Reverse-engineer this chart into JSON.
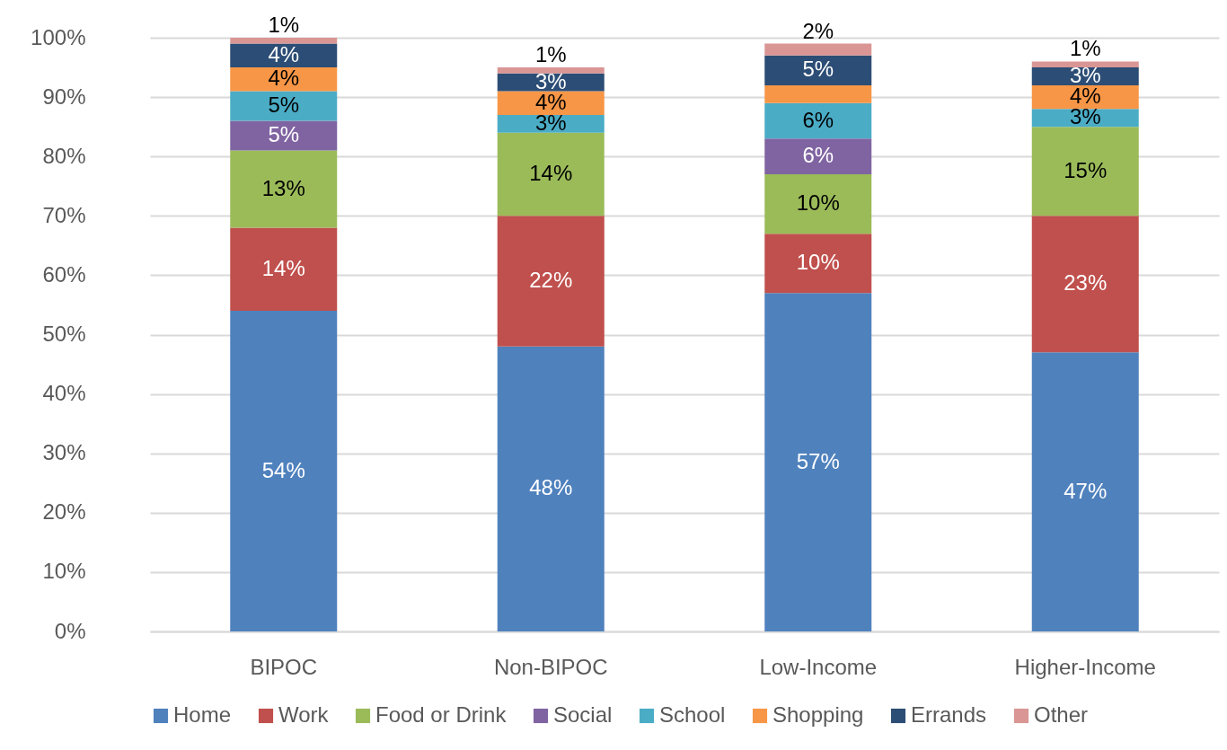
{
  "chart_data": {
    "type": "bar",
    "stacked": true,
    "categories": [
      "BIPOC",
      "Non-BIPOC",
      "Low-Income",
      "Higher-Income"
    ],
    "series": [
      {
        "name": "Home",
        "color": "#4f81bd",
        "values": [
          54,
          48,
          57,
          47
        ],
        "value_labels": [
          "54%",
          "48%",
          "57%",
          "47%"
        ]
      },
      {
        "name": "Work",
        "color": "#c0504d",
        "values": [
          14,
          22,
          10,
          23
        ],
        "value_labels": [
          "14%",
          "22%",
          "10%",
          "23%"
        ]
      },
      {
        "name": "Food or Drink",
        "color": "#9bbb59",
        "values": [
          13,
          14,
          10,
          15
        ],
        "value_labels": [
          "13%",
          "14%",
          "10%",
          "15%"
        ]
      },
      {
        "name": "Social",
        "color": "#8064a2",
        "values": [
          5,
          null,
          6,
          null
        ],
        "value_labels": [
          "5%",
          null,
          "6%",
          null
        ]
      },
      {
        "name": "School",
        "color": "#4bacc6",
        "values": [
          5,
          3,
          6,
          3
        ],
        "value_labels": [
          "5%",
          "3%",
          "6%",
          "3%"
        ]
      },
      {
        "name": "Shopping",
        "color": "#f79646",
        "values": [
          4,
          4,
          3,
          4
        ],
        "value_labels": [
          "4%",
          "4%",
          null,
          "4%"
        ]
      },
      {
        "name": "Errands",
        "color": "#2c4d75",
        "values": [
          4,
          3,
          5,
          3
        ],
        "value_labels": [
          "4%",
          "3%",
          "5%",
          "3%"
        ]
      },
      {
        "name": "Other",
        "color": "#d99694",
        "values": [
          1,
          1,
          2,
          1
        ],
        "value_labels": [
          "1%",
          "1%",
          "2%",
          "1%"
        ]
      }
    ],
    "ylim": [
      0,
      100
    ],
    "yticks": [
      {
        "value": 0,
        "label": "0%"
      },
      {
        "value": 10,
        "label": "10%"
      },
      {
        "value": 20,
        "label": "20%"
      },
      {
        "value": 30,
        "label": "30%"
      },
      {
        "value": 40,
        "label": "40%"
      },
      {
        "value": 50,
        "label": "50%"
      },
      {
        "value": 60,
        "label": "60%"
      },
      {
        "value": 70,
        "label": "70%"
      },
      {
        "value": 80,
        "label": "80%"
      },
      {
        "value": 90,
        "label": "90%"
      },
      {
        "value": 100,
        "label": "100%"
      }
    ],
    "grid": "y",
    "legend": "bottom"
  }
}
